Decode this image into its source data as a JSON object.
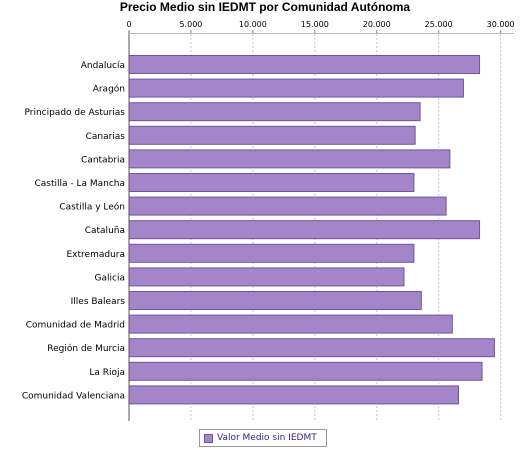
{
  "chart_data": {
    "type": "bar",
    "orientation": "horizontal",
    "title": "Precio Medio sin IEDMT por Comunidad Autónoma",
    "categories": [
      "Andalucía",
      "Aragón",
      "Principado de Asturias",
      "Canarias",
      "Cantabria",
      "Castilla - La Mancha",
      "Castilla y León",
      "Cataluña",
      "Extremadura",
      "Galicia",
      "Illes Balears",
      "Comunidad de Madrid",
      "Región de Murcia",
      "La Rioja",
      "Comunidad Valenciana"
    ],
    "series": [
      {
        "name": "Valor Medio sin IEDMT",
        "values": [
          28300,
          27000,
          23500,
          23100,
          25900,
          23000,
          25600,
          28300,
          23000,
          22200,
          23600,
          26100,
          29500,
          28500,
          26600
        ]
      }
    ],
    "xlim": [
      0,
      31000
    ],
    "xticks": [
      "0",
      "5.000",
      "10.000",
      "15.000",
      "20.000",
      "25.000",
      "30.000"
    ],
    "xtick_values": [
      0,
      5000,
      10000,
      15000,
      20000,
      25000,
      30000
    ],
    "xaxis_position": "top",
    "grid": true,
    "legend_position": "bottom",
    "colors": {
      "bar_fill": "#a585c9",
      "bar_stroke": "#6f55a0",
      "grid": "#c8c8c8",
      "legend_text": "#3a1f78"
    }
  }
}
